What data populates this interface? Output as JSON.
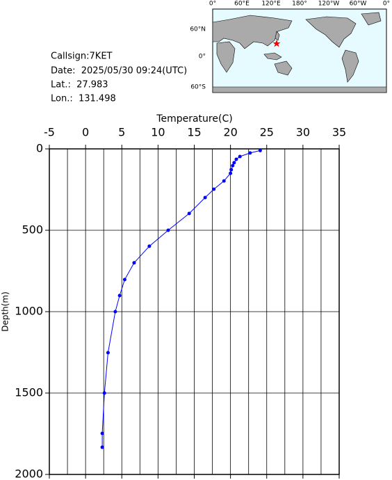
{
  "info": {
    "callsign": "Callsign:7KET",
    "date": "Date:  2025/05/30 09:24(UTC)",
    "lat": "Lat.:  27.983",
    "lon": "Lon.:  131.498"
  },
  "map": {
    "lon_labels": [
      "0°",
      "60°E",
      "120°E",
      "180°",
      "120°W",
      "60°W",
      "0°"
    ],
    "lat_labels": [
      "60°N",
      "0°",
      "60°S"
    ]
  },
  "chart_data": {
    "type": "line",
    "x_label": "Temperature(C)",
    "y_label": "Depth(m)",
    "xlim": [
      -5,
      35
    ],
    "ylim": [
      0,
      2000
    ],
    "y_inverted": true,
    "xticks": [
      -5,
      0,
      5,
      10,
      15,
      20,
      25,
      30,
      35
    ],
    "x_minor_ticks": [
      -2.5,
      2.5,
      7.5,
      12.5,
      17.5,
      22.5,
      27.5,
      32.5
    ],
    "yticks": [
      0,
      500,
      1000,
      1500,
      2000
    ],
    "grid": true,
    "x": [
      24.1,
      22.7,
      21.3,
      20.8,
      20.5,
      20.3,
      20.1,
      20.0,
      19.1,
      17.7,
      16.5,
      14.3,
      11.4,
      8.8,
      6.7,
      5.4,
      4.7,
      4.1,
      3.1,
      2.6,
      2.3,
      2.3
    ],
    "series": [
      {
        "color": "#0000ff",
        "values": [
          10,
          25,
          47,
          64,
          85,
          103,
          128,
          150,
          197,
          248,
          299,
          397,
          500,
          598,
          700,
          803,
          901,
          1000,
          1252,
          1500,
          1748,
          1833
        ]
      }
    ]
  }
}
